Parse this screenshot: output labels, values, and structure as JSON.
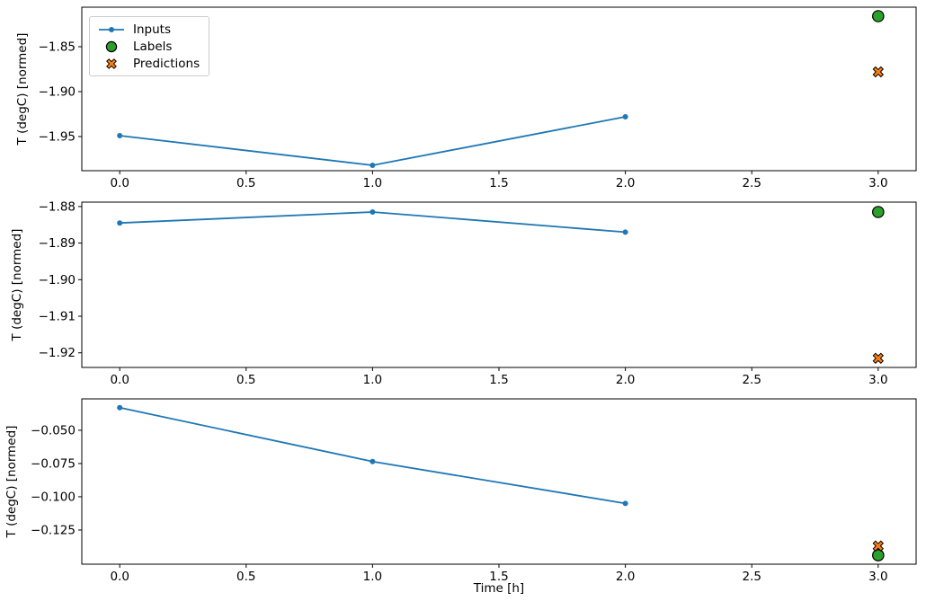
{
  "figure": {
    "background": "#ffffff"
  },
  "colors": {
    "inputs": "#1f77b4",
    "labels": "#2ca02c",
    "predictions": "#ff7f0e",
    "marker_edge": "#000000",
    "axis": "#000000",
    "text": "#000000",
    "legend_border": "#cccccc"
  },
  "legend": {
    "position": "upper left",
    "items": [
      {
        "label": "Inputs",
        "marker": "line-dot",
        "color": "#1f77b4",
        "edge": "#1f77b4"
      },
      {
        "label": "Labels",
        "marker": "circle",
        "color": "#2ca02c",
        "edge": "#000000"
      },
      {
        "label": "Predictions",
        "marker": "x",
        "color": "#ff7f0e",
        "edge": "#000000"
      }
    ]
  },
  "chart_data": [
    {
      "type": "line",
      "title": "",
      "xlabel": "",
      "ylabel": "T (degC) [normed]",
      "grid": false,
      "xlim": [
        -0.15,
        3.15
      ],
      "ylim": [
        -1.988,
        -1.806
      ],
      "xticks": [
        0.0,
        0.5,
        1.0,
        1.5,
        2.0,
        2.5,
        3.0
      ],
      "xtick_labels": [
        "0.0",
        "0.5",
        "1.0",
        "1.5",
        "2.0",
        "2.5",
        "3.0"
      ],
      "yticks": [
        -1.85,
        -1.9,
        -1.95
      ],
      "ytick_labels": [
        "−1.85",
        "−1.90",
        "−1.95"
      ],
      "show_legend": true,
      "series": [
        {
          "name": "Inputs",
          "type": "line",
          "marker": "dot",
          "color": "#1f77b4",
          "x": [
            0,
            1,
            2
          ],
          "y": [
            -1.949,
            -1.982,
            -1.928
          ]
        },
        {
          "name": "Labels",
          "type": "scatter",
          "marker": "circle",
          "color": "#2ca02c",
          "edge": "#000000",
          "x": [
            3
          ],
          "y": [
            -1.816
          ]
        },
        {
          "name": "Predictions",
          "type": "scatter",
          "marker": "x",
          "color": "#ff7f0e",
          "edge": "#000000",
          "x": [
            3
          ],
          "y": [
            -1.878
          ]
        }
      ]
    },
    {
      "type": "line",
      "title": "",
      "xlabel": "",
      "ylabel": "T (degC) [normed]",
      "grid": false,
      "xlim": [
        -0.15,
        3.15
      ],
      "ylim": [
        -1.924,
        -1.8788
      ],
      "xticks": [
        0.0,
        0.5,
        1.0,
        1.5,
        2.0,
        2.5,
        3.0
      ],
      "xtick_labels": [
        "0.0",
        "0.5",
        "1.0",
        "1.5",
        "2.0",
        "2.5",
        "3.0"
      ],
      "yticks": [
        -1.88,
        -1.89,
        -1.9,
        -1.91,
        -1.92
      ],
      "ytick_labels": [
        "−1.88",
        "−1.89",
        "−1.90",
        "−1.91",
        "−1.92"
      ],
      "show_legend": false,
      "series": [
        {
          "name": "Inputs",
          "type": "line",
          "marker": "dot",
          "color": "#1f77b4",
          "x": [
            0,
            1,
            2
          ],
          "y": [
            -1.8845,
            -1.8815,
            -1.887
          ]
        },
        {
          "name": "Labels",
          "type": "scatter",
          "marker": "circle",
          "color": "#2ca02c",
          "edge": "#000000",
          "x": [
            3
          ],
          "y": [
            -1.8815
          ]
        },
        {
          "name": "Predictions",
          "type": "scatter",
          "marker": "x",
          "color": "#ff7f0e",
          "edge": "#000000",
          "x": [
            3
          ],
          "y": [
            -1.9215
          ]
        }
      ]
    },
    {
      "type": "line",
      "title": "",
      "xlabel": "Time [h]",
      "ylabel": "T (degC) [normed]",
      "grid": false,
      "xlim": [
        -0.15,
        3.15
      ],
      "ylim": [
        -0.1507,
        -0.0264
      ],
      "xticks": [
        0.0,
        0.5,
        1.0,
        1.5,
        2.0,
        2.5,
        3.0
      ],
      "xtick_labels": [
        "0.0",
        "0.5",
        "1.0",
        "1.5",
        "2.0",
        "2.5",
        "3.0"
      ],
      "yticks": [
        -0.05,
        -0.075,
        -0.1,
        -0.125
      ],
      "ytick_labels": [
        "−0.050",
        "−0.075",
        "−0.100",
        "−0.125"
      ],
      "show_legend": false,
      "series": [
        {
          "name": "Inputs",
          "type": "line",
          "marker": "dot",
          "color": "#1f77b4",
          "x": [
            0,
            1,
            2
          ],
          "y": [
            -0.033,
            -0.0735,
            -0.105
          ]
        },
        {
          "name": "Labels",
          "type": "scatter",
          "marker": "circle",
          "color": "#2ca02c",
          "edge": "#000000",
          "x": [
            3
          ],
          "y": [
            -0.144
          ]
        },
        {
          "name": "Predictions",
          "type": "scatter",
          "marker": "x",
          "color": "#ff7f0e",
          "edge": "#000000",
          "x": [
            3
          ],
          "y": [
            -0.137
          ]
        }
      ]
    }
  ]
}
